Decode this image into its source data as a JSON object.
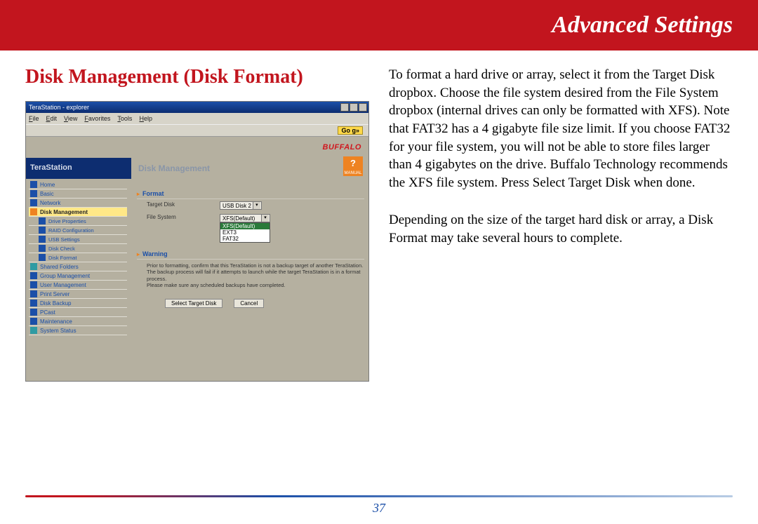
{
  "header": {
    "title": "Advanced Settings"
  },
  "section": {
    "title": "Disk Management (Disk Format)"
  },
  "body": {
    "p1": "To format a hard drive or array, select it from the Target Disk dropbox.  Choose the file system desired from the File System dropbox (internal drives can only be formatted with XFS).  Note that FAT32 has a 4 gigabyte file size limit.  If you choose FAT32 for your file system, you will not be able to store files larger than 4 gigabytes on the drive.  Buffalo Technology recommends the XFS file system.  Press Select Target Disk when done.",
    "p2": "Depending on the size of the target hard disk or array, a Disk Format may take several hours to complete."
  },
  "shot": {
    "window_title": "TeraStation - explorer",
    "menus": [
      "File",
      "Edit",
      "View",
      "Favorites",
      "Tools",
      "Help"
    ],
    "go_label": "Go g»",
    "brand": "BUFFALO",
    "product": "TeraStation",
    "panel_title": "Disk Management",
    "manual_label": "MANUAL",
    "sidebar": [
      {
        "label": "Home",
        "icon": "blue"
      },
      {
        "label": "Basic",
        "icon": "blue"
      },
      {
        "label": "Network",
        "icon": "blue"
      },
      {
        "label": "Disk Management",
        "icon": "orange",
        "active": true
      },
      {
        "label": "Drive Properties",
        "icon": "blue",
        "sub": true
      },
      {
        "label": "RAID Configuration",
        "icon": "blue",
        "sub": true
      },
      {
        "label": "USB Settings",
        "icon": "blue",
        "sub": true
      },
      {
        "label": "Disk Check",
        "icon": "blue",
        "sub": true
      },
      {
        "label": "Disk Format",
        "icon": "blue",
        "sub": true
      },
      {
        "label": "Shared Folders",
        "icon": "teal"
      },
      {
        "label": "Group Management",
        "icon": "blue"
      },
      {
        "label": "User Management",
        "icon": "blue"
      },
      {
        "label": "Print Server",
        "icon": "blue"
      },
      {
        "label": "Disk Backup",
        "icon": "blue"
      },
      {
        "label": "PCast",
        "icon": "blue"
      },
      {
        "label": "Maintenance",
        "icon": "blue"
      },
      {
        "label": "System Status",
        "icon": "teal"
      }
    ],
    "format_section": "Format",
    "target_disk_label": "Target Disk",
    "target_disk_value": "USB Disk 2",
    "file_system_label": "File System",
    "fs_options": [
      "XFS(Default)",
      "XFS(Default)",
      "EXT3",
      "FAT32"
    ],
    "warning_section": "Warning",
    "warning_lines": [
      "Prior to formatting, confirm that this TeraStation is not a backup target of another TeraStation.",
      "The backup process will fail if it attempts to launch while the target TeraStation is in a format process.",
      "Please make sure any scheduled backups have completed."
    ],
    "btn_select": "Select Target Disk",
    "btn_cancel": "Cancel"
  },
  "page_number": "37",
  "colors": {
    "red": "#c2151e",
    "blue": "#1b4fa8",
    "orange": "#ee8322"
  }
}
